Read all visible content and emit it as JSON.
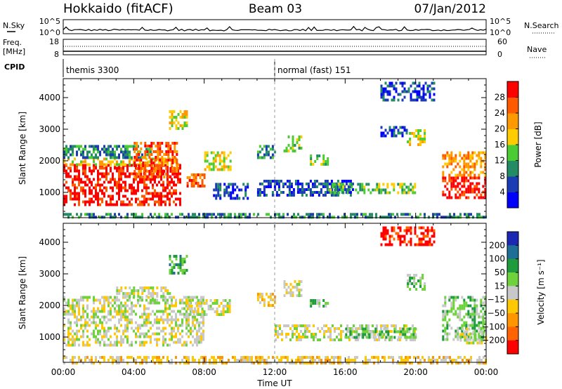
{
  "header": {
    "title_left": "Hokkaido (fitACF)",
    "title_center": "Beam 03",
    "title_right": "07/Jan/2012"
  },
  "noise_panel": {
    "label_left": "N.Sky",
    "label_right": "N.Search",
    "tick_top": "10^5",
    "tick_bottom": "10^0",
    "tick_top_right": "10^5",
    "tick_bottom_right": "10^0"
  },
  "freq_panel": {
    "label_left_top": "Freq.",
    "label_left_bottom": "[MHz]",
    "label_right": "Nave",
    "tick_left_top": "18",
    "tick_left_bottom": "8",
    "tick_right_top": "60",
    "tick_right_bottom": "0"
  },
  "cpid_panel": {
    "label": "CPID",
    "modes": [
      {
        "start_hour": 0.0,
        "name": "themis 3300"
      },
      {
        "start_hour": 12.0,
        "name": "normal (fast) 151"
      }
    ]
  },
  "power_colorbar": {
    "label": "Power [dB]",
    "ticks": [
      "4",
      "8",
      "12",
      "16",
      "20",
      "24",
      "28"
    ],
    "colors": [
      "#0000ff",
      "#1b3cb4",
      "#238c64",
      "#4ccc33",
      "#ffcc00",
      "#ff9900",
      "#ff5a00",
      "#ff0000"
    ]
  },
  "velocity_colorbar": {
    "label": "Velocity [m s⁻¹]",
    "ticks": [
      "200",
      "100",
      "50",
      "15",
      "−15",
      "−50",
      "−100",
      "−200"
    ],
    "colors": [
      "#1c28b4",
      "#1e6e96",
      "#1e9b3c",
      "#6ed23c",
      "#c8c8c8",
      "#ffc800",
      "#ff9600",
      "#ff6400",
      "#ff0000"
    ]
  },
  "chart_data": [
    {
      "type": "heatmap",
      "name": "power",
      "ylabel": "Slant Range [km]",
      "xlim": [
        0,
        24
      ],
      "ylim": [
        200,
        4600
      ],
      "yticks": [
        "1000",
        "2000",
        "3000",
        "4000"
      ],
      "regions": [
        {
          "t0": 0.0,
          "t1": 6.6,
          "r0": 650,
          "r1": 1900,
          "level": 7
        },
        {
          "t0": 0.0,
          "t1": 6.5,
          "r0": 1900,
          "r1": 2100,
          "level": 4
        },
        {
          "t0": 0.0,
          "t1": 5.0,
          "r0": 2100,
          "r1": 2500,
          "level": 2
        },
        {
          "t0": 4.0,
          "t1": 6.5,
          "r0": 1500,
          "r1": 2600,
          "level": 6
        },
        {
          "t0": 6.0,
          "t1": 7.0,
          "r0": 3000,
          "r1": 3600,
          "level": 4
        },
        {
          "t0": 7.0,
          "t1": 8.0,
          "r0": 1200,
          "r1": 1600,
          "level": 6
        },
        {
          "t0": 8.0,
          "t1": 9.5,
          "r0": 1700,
          "r1": 2300,
          "level": 4
        },
        {
          "t0": 8.5,
          "t1": 10.5,
          "r0": 800,
          "r1": 1300,
          "level": 1
        },
        {
          "t0": 11.0,
          "t1": 12.0,
          "r0": 2100,
          "r1": 2500,
          "level": 2
        },
        {
          "t0": 12.5,
          "t1": 13.5,
          "r0": 2300,
          "r1": 2800,
          "level": 3
        },
        {
          "t0": 14.0,
          "t1": 15.0,
          "r0": 1900,
          "r1": 2200,
          "level": 3
        },
        {
          "t0": 11.0,
          "t1": 16.5,
          "r0": 900,
          "r1": 1400,
          "level": 1
        },
        {
          "t0": 15.0,
          "t1": 20.0,
          "r0": 950,
          "r1": 1300,
          "level": 3
        },
        {
          "t0": 18.0,
          "t1": 19.5,
          "r0": 2800,
          "r1": 3100,
          "level": 1
        },
        {
          "t0": 19.5,
          "t1": 20.5,
          "r0": 2500,
          "r1": 3000,
          "level": 4
        },
        {
          "t0": 18.0,
          "t1": 21.0,
          "r0": 3900,
          "r1": 4500,
          "level": 1
        },
        {
          "t0": 21.5,
          "t1": 24.0,
          "r0": 800,
          "r1": 1500,
          "level": 7
        },
        {
          "t0": 21.5,
          "t1": 24.0,
          "r0": 1500,
          "r1": 2300,
          "level": 5
        },
        {
          "t0": 0.0,
          "t1": 24.0,
          "r0": 200,
          "r1": 350,
          "level": 2
        }
      ]
    },
    {
      "type": "heatmap",
      "name": "velocity",
      "xlabel": "Time UT",
      "ylabel": "Slant Range [km]",
      "xlim": [
        0,
        24
      ],
      "ylim": [
        200,
        4600
      ],
      "xticks": [
        "00:00",
        "04:00",
        "08:00",
        "12:00",
        "16:00",
        "20:00",
        "00:00"
      ],
      "yticks": [
        "1000",
        "2000",
        "3000",
        "4000"
      ],
      "regions": [
        {
          "t0": 0.0,
          "t1": 8.0,
          "r0": 700,
          "r1": 2300,
          "level": 4
        },
        {
          "t0": 3.0,
          "t1": 6.0,
          "r0": 2300,
          "r1": 2600,
          "level": 4
        },
        {
          "t0": 6.0,
          "t1": 7.0,
          "r0": 3000,
          "r1": 3600,
          "level": 2
        },
        {
          "t0": 7.0,
          "t1": 9.5,
          "r0": 1700,
          "r1": 2200,
          "level": 4
        },
        {
          "t0": 11.0,
          "t1": 12.0,
          "r0": 2000,
          "r1": 2400,
          "level": 5
        },
        {
          "t0": 12.5,
          "t1": 13.5,
          "r0": 2300,
          "r1": 2800,
          "level": 4
        },
        {
          "t0": 14.0,
          "t1": 15.0,
          "r0": 2000,
          "r1": 2200,
          "level": 3
        },
        {
          "t0": 12.0,
          "t1": 20.0,
          "r0": 900,
          "r1": 1400,
          "level": 4
        },
        {
          "t0": 16.0,
          "t1": 20.0,
          "r0": 1000,
          "r1": 1300,
          "level": 3
        },
        {
          "t0": 19.5,
          "t1": 20.5,
          "r0": 2500,
          "r1": 3000,
          "level": 3
        },
        {
          "t0": 18.0,
          "t1": 21.0,
          "r0": 3900,
          "r1": 4500,
          "level": 8
        },
        {
          "t0": 21.5,
          "t1": 24.0,
          "r0": 900,
          "r1": 2300,
          "level": 3
        },
        {
          "t0": 22.5,
          "t1": 24.0,
          "r0": 800,
          "r1": 1300,
          "level": 4
        },
        {
          "t0": 0.0,
          "t1": 24.0,
          "r0": 200,
          "r1": 400,
          "level": 5
        }
      ]
    }
  ]
}
